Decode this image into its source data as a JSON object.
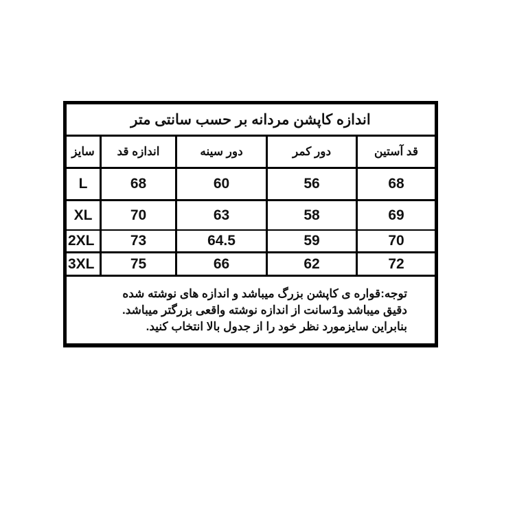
{
  "title": "اندازه کاپشن مردانه بر حسب سانتی متر",
  "columns": [
    "سایز",
    "اندازه قد",
    "دور سینه",
    "دور کمر",
    "قد آستین"
  ],
  "rows": [
    {
      "size": "L",
      "values": [
        "68",
        "60",
        "56",
        "68"
      ]
    },
    {
      "size": "XL",
      "values": [
        "70",
        "63",
        "58",
        "69"
      ]
    },
    {
      "size": "2XL",
      "values": [
        "73",
        "64.5",
        "59",
        "70"
      ]
    },
    {
      "size": "3XL",
      "values": [
        "75",
        "66",
        "62",
        "72"
      ]
    }
  ],
  "note_lines": [
    "توجه:قواره ی کاپشن بزرگ میباشد و اندازه های نوشته شده",
    "دقیق میباشد و1سانت از اندازه نوشته واقعی بزرگتر میباشد.",
    "بنابراین سایزمورد نظر خود را از جدول بالا انتخاب کنید."
  ]
}
